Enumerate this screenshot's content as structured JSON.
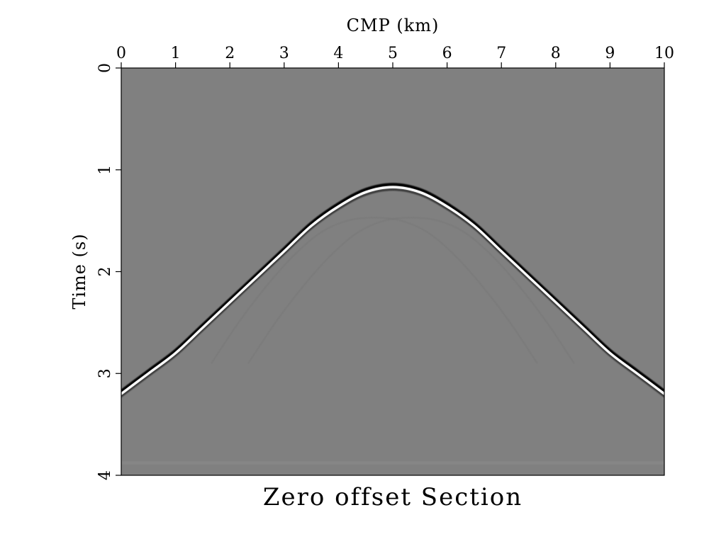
{
  "chart_data": {
    "type": "line",
    "title": "Zero offset Section",
    "xlabel": "CMP (km)",
    "ylabel": "Time (s)",
    "x_axis_position": "top",
    "y_axis_inverted": true,
    "xlim": [
      0,
      10
    ],
    "ylim": [
      0,
      4
    ],
    "xticks": [
      0,
      1,
      2,
      3,
      4,
      5,
      6,
      7,
      8,
      9,
      10
    ],
    "yticks": [
      0,
      1,
      2,
      3,
      4
    ],
    "grid": false,
    "colors": {
      "background": "#808080",
      "event_trough": "#000000",
      "event_peak": "#ffffff",
      "weak_event": "#747474"
    },
    "series": [
      {
        "x": [
          0,
          0.5,
          1,
          1.5,
          2,
          2.5,
          3,
          3.5,
          4,
          4.5,
          5,
          5.5,
          6,
          6.5,
          7,
          7.5,
          8,
          8.5,
          9,
          9.5,
          10
        ],
        "y": [
          3.2,
          3.0,
          2.8,
          2.55,
          2.3,
          2.05,
          1.8,
          1.55,
          1.36,
          1.22,
          1.17,
          1.22,
          1.36,
          1.55,
          1.8,
          2.05,
          2.3,
          2.55,
          2.8,
          3.0,
          3.2
        ]
      },
      {
        "x": [
          2,
          2.5,
          3,
          3.5,
          4,
          4.5,
          5,
          5.5,
          6,
          6.5,
          7,
          7.5,
          8
        ],
        "y": [
          2.9,
          2.5,
          2.15,
          1.85,
          1.62,
          1.5,
          1.47,
          1.5,
          1.62,
          1.85,
          2.15,
          2.5,
          2.9
        ]
      },
      {
        "x": [
          2,
          2.5,
          3,
          3.5,
          4,
          4.5,
          5,
          5.5,
          6,
          6.5,
          7,
          7.5,
          8
        ],
        "y": [
          2.9,
          2.5,
          2.15,
          1.85,
          1.62,
          1.5,
          1.47,
          1.5,
          1.62,
          1.85,
          2.15,
          2.5,
          2.9
        ]
      }
    ]
  }
}
